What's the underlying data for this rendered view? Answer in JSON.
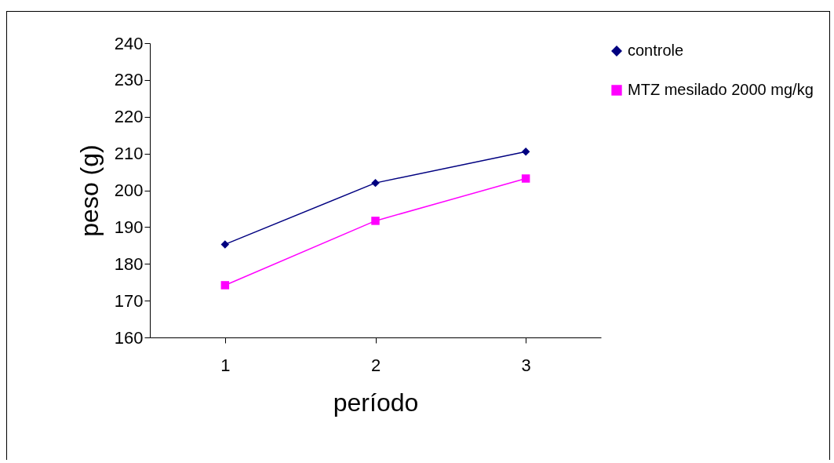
{
  "chart_data": {
    "type": "line",
    "xlabel": "período",
    "ylabel": "peso (g)",
    "categories": [
      "1",
      "2",
      "3"
    ],
    "series": [
      {
        "name": "controle",
        "color": "#000080",
        "marker": "diamond",
        "values": [
          185.3,
          202,
          210.5
        ]
      },
      {
        "name": "MTZ mesilado 2000 mg/kg",
        "color": "#ff00ff",
        "marker": "square",
        "values": [
          174.2,
          191.7,
          203.2
        ]
      }
    ],
    "ylim": [
      160,
      240
    ],
    "yticks": [
      160,
      170,
      180,
      190,
      200,
      210,
      220,
      230,
      240
    ],
    "grid": false,
    "legend": "top right",
    "line_style": "solid"
  }
}
